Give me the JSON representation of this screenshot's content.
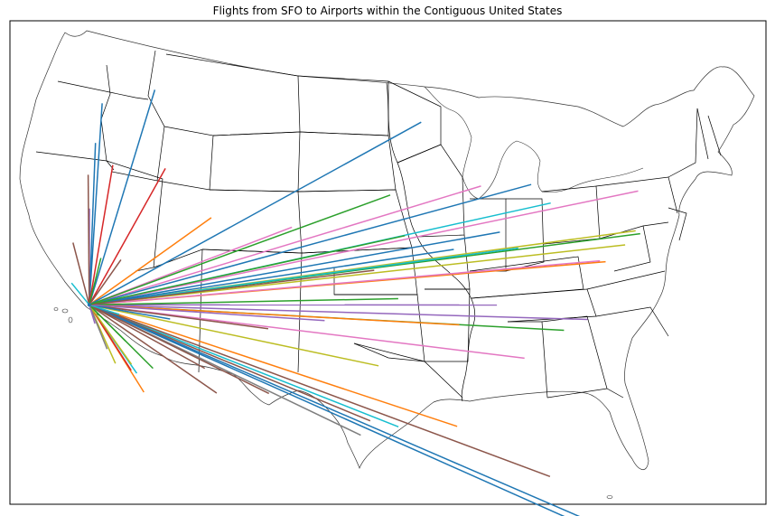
{
  "title": "Flights from SFO to Airports within the Contiguous United States",
  "map": {
    "region": "Contiguous United States",
    "origin": "SFO",
    "frame_color": "#000000",
    "border_color": "#000000",
    "water": false
  },
  "palette": [
    "#1f77b4",
    "#ff7f0e",
    "#2ca02c",
    "#d62728",
    "#9467bd",
    "#8c564b",
    "#e377c2",
    "#7f7f7f",
    "#bcbd22",
    "#17becf"
  ],
  "routes": [
    {
      "lon": -122.7,
      "lat": 45.6,
      "color": "#1f77b4"
    },
    {
      "lon": -117.5,
      "lat": 47.6,
      "color": "#1f77b4"
    },
    {
      "lon": -122.3,
      "lat": 47.5,
      "color": "#1f77b4"
    },
    {
      "lon": -116.2,
      "lat": 43.6,
      "color": "#d62728"
    },
    {
      "lon": -122.9,
      "lat": 42.4,
      "color": "#9467bd"
    },
    {
      "lon": -123.2,
      "lat": 44.1,
      "color": "#8c564b"
    },
    {
      "lon": -124.2,
      "lat": 40.9,
      "color": "#8c564b"
    },
    {
      "lon": -121.0,
      "lat": 44.3,
      "color": "#d62728"
    },
    {
      "lon": -124.1,
      "lat": 38.9,
      "color": "#17becf"
    },
    {
      "lon": -121.6,
      "lat": 39.8,
      "color": "#2ca02c"
    },
    {
      "lon": -119.8,
      "lat": 39.5,
      "color": "#8c564b"
    },
    {
      "lon": -111.9,
      "lat": 40.8,
      "color": "#ff7f0e"
    },
    {
      "lon": -104.7,
      "lat": 39.9,
      "color": "#e377c2"
    },
    {
      "lon": -93.2,
      "lat": 44.9,
      "color": "#1f77b4"
    },
    {
      "lon": -87.9,
      "lat": 41.9,
      "color": "#e377c2"
    },
    {
      "lon": -83.4,
      "lat": 42.2,
      "color": "#1f77b4"
    },
    {
      "lon": -81.7,
      "lat": 41.4,
      "color": "#17becf"
    },
    {
      "lon": -73.8,
      "lat": 42.7,
      "color": "#e377c2"
    },
    {
      "lon": -73.8,
      "lat": 40.6,
      "color": "#2ca02c"
    },
    {
      "lon": -74.2,
      "lat": 40.7,
      "color": "#bcbd22"
    },
    {
      "lon": -75.2,
      "lat": 39.9,
      "color": "#bcbd22"
    },
    {
      "lon": -77.0,
      "lat": 38.9,
      "color": "#ff7f0e"
    },
    {
      "lon": -77.5,
      "lat": 38.9,
      "color": "#e377c2"
    },
    {
      "lon": -84.7,
      "lat": 39.0,
      "color": "#17becf"
    },
    {
      "lon": -86.3,
      "lat": 39.7,
      "color": "#1f77b4"
    },
    {
      "lon": -90.4,
      "lat": 38.7,
      "color": "#1f77b4"
    },
    {
      "lon": -94.7,
      "lat": 39.3,
      "color": "#2ca02c"
    },
    {
      "lon": -80.9,
      "lat": 35.2,
      "color": "#2ca02c"
    },
    {
      "lon": -78.8,
      "lat": 35.9,
      "color": "#9467bd"
    },
    {
      "lon": -84.4,
      "lat": 33.6,
      "color": "#e377c2"
    },
    {
      "lon": -86.7,
      "lat": 36.1,
      "color": "#9467bd"
    },
    {
      "lon": -90.0,
      "lat": 35.0,
      "color": "#ff7f0e"
    },
    {
      "lon": -95.3,
      "lat": 36.2,
      "color": "#2ca02c"
    },
    {
      "lon": -97.0,
      "lat": 32.9,
      "color": "#bcbd22"
    },
    {
      "lon": -95.3,
      "lat": 29.9,
      "color": "#17becf"
    },
    {
      "lon": -97.7,
      "lat": 30.2,
      "color": "#8c564b"
    },
    {
      "lon": -98.5,
      "lat": 29.5,
      "color": "#7f7f7f"
    },
    {
      "lon": -90.3,
      "lat": 30.0,
      "color": "#ff7f0e"
    },
    {
      "lon": -82.5,
      "lat": 27.9,
      "color": "#8c564b"
    },
    {
      "lon": -80.3,
      "lat": 25.8,
      "color": "#1f77b4"
    },
    {
      "lon": -80.1,
      "lat": 26.1,
      "color": "#1f77b4"
    },
    {
      "lon": -106.4,
      "lat": 31.8,
      "color": "#8c564b"
    },
    {
      "lon": -106.6,
      "lat": 35.0,
      "color": "#8c564b"
    },
    {
      "lon": -110.9,
      "lat": 32.1,
      "color": "#8c564b"
    },
    {
      "lon": -112.0,
      "lat": 33.4,
      "color": "#8c564b"
    },
    {
      "lon": -115.2,
      "lat": 36.1,
      "color": "#1f77b4"
    },
    {
      "lon": -116.5,
      "lat": 33.8,
      "color": "#2ca02c"
    },
    {
      "lon": -117.2,
      "lat": 32.7,
      "color": "#ff7f0e"
    },
    {
      "lon": -117.9,
      "lat": 33.7,
      "color": "#17becf"
    },
    {
      "lon": -118.4,
      "lat": 33.9,
      "color": "#d62728"
    },
    {
      "lon": -118.4,
      "lat": 34.2,
      "color": "#bcbd22"
    },
    {
      "lon": -119.0,
      "lat": 35.4,
      "color": "#2ca02c"
    },
    {
      "lon": -119.7,
      "lat": 36.8,
      "color": "#17becf"
    },
    {
      "lon": -119.8,
      "lat": 34.4,
      "color": "#bcbd22"
    },
    {
      "lon": -120.6,
      "lat": 35.2,
      "color": "#7f7f7f"
    },
    {
      "lon": -121.8,
      "lat": 36.6,
      "color": "#9467bd"
    },
    {
      "lon": -101.7,
      "lat": 35.2,
      "color": "#9467bd"
    },
    {
      "lon": -97.4,
      "lat": 37.6,
      "color": "#8c564b"
    },
    {
      "lon": -96.0,
      "lat": 41.3,
      "color": "#2ca02c"
    }
  ]
}
